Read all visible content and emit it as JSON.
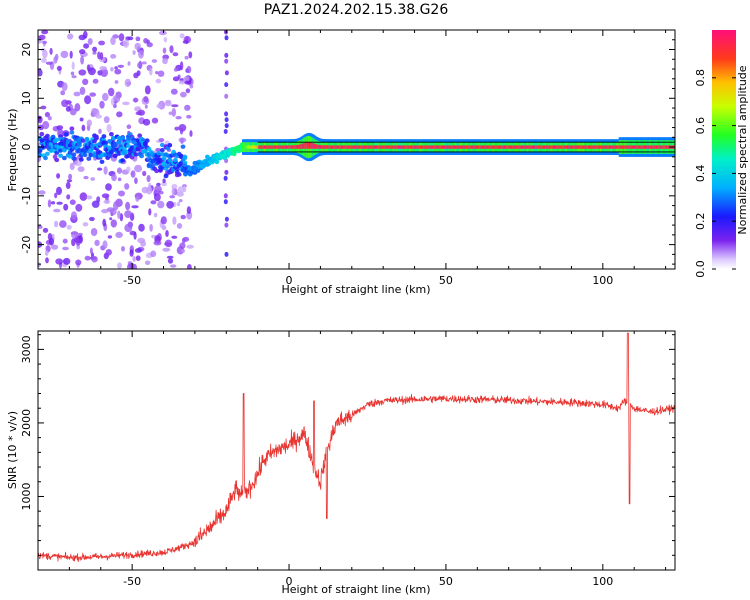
{
  "title": "PAZ1.2024.202.15.38.G26",
  "chart_data": [
    {
      "type": "heatmap",
      "xlabel": "Height of straight line (km)",
      "ylabel": "Frequency (Hz)",
      "xlim": [
        -80,
        123
      ],
      "ylim": [
        -25,
        24
      ],
      "xticks": [
        -50,
        0,
        50,
        100
      ],
      "xtick_labels": [
        "-50",
        "0",
        "50",
        "100"
      ],
      "yticks": [
        -20,
        -10,
        0,
        10,
        20
      ],
      "ytick_labels": [
        "-20",
        "-10",
        "0",
        "10",
        "20"
      ],
      "colorbar": {
        "label": "Normalized spectral amplitude",
        "range": [
          0,
          1
        ],
        "ticks": [
          0.0,
          0.2,
          0.4,
          0.6,
          0.8
        ],
        "tick_labels": [
          "0.0",
          "0.2",
          "0.4",
          "0.6",
          "0.8"
        ],
        "colormap": "gist_rainbow_r"
      },
      "features": {
        "dominant_line_frequency_hz": 0,
        "scatter_region_end_km": -33,
        "transition_region_km": [
          -33,
          -15
        ],
        "line_bump_near_km": 6
      },
      "grid": false
    },
    {
      "type": "line",
      "xlabel": "Height of straight line (km)",
      "ylabel": "SNR (10 * v/v)",
      "xlim": [
        -80,
        123
      ],
      "ylim": [
        0,
        3250
      ],
      "xticks": [
        -50,
        0,
        50,
        100
      ],
      "xtick_labels": [
        "-50",
        "0",
        "50",
        "100"
      ],
      "yticks": [
        1000,
        2000,
        3000
      ],
      "ytick_labels": [
        "1000",
        "2000",
        "3000"
      ],
      "line_color": "#e8332f",
      "series": [
        {
          "x": [
            -80,
            -70,
            -60,
            -50,
            -40,
            -35,
            -30,
            -25,
            -20,
            -17,
            -15,
            -12,
            -10,
            -8,
            -5,
            -3,
            0,
            3,
            5,
            8,
            10,
            12,
            15,
            20,
            25,
            30,
            40,
            50,
            60,
            70,
            80,
            90,
            100,
            105,
            107,
            110,
            115,
            123
          ],
          "y": [
            200,
            170,
            180,
            210,
            240,
            300,
            380,
            580,
            800,
            1100,
            1000,
            1150,
            1300,
            1500,
            1600,
            1650,
            1700,
            1800,
            1850,
            1400,
            1200,
            1600,
            2000,
            2100,
            2250,
            2300,
            2320,
            2330,
            2320,
            2310,
            2290,
            2280,
            2250,
            2200,
            2300,
            2200,
            2150,
            2200
          ]
        }
      ],
      "annotations": [
        {
          "x": -14.5,
          "y": 2400
        },
        {
          "x": 8,
          "y": 2300
        },
        {
          "x": 12,
          "y": 700
        },
        {
          "x": 108,
          "y": 3220
        },
        {
          "x": 108.5,
          "y": 900
        }
      ],
      "grid": false
    }
  ]
}
